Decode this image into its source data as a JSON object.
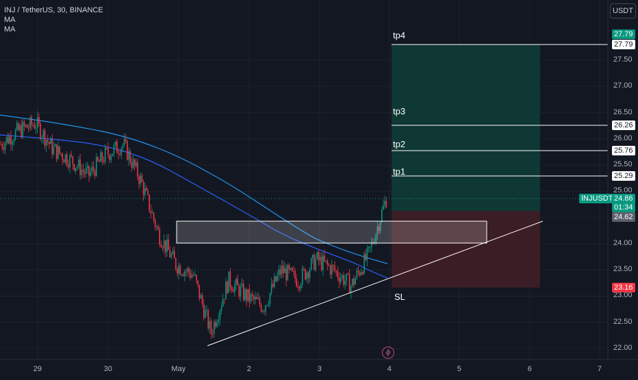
{
  "legend": {
    "symbol": "INJ / TetherUS, 30, BINANCE",
    "indicators": [
      "MA",
      "MA"
    ]
  },
  "currency_button": "USDT",
  "price_axis": {
    "ticks": [
      "27.50",
      "27.00",
      "26.50",
      "26.00",
      "25.50",
      "25.00",
      "24.50",
      "24.00",
      "23.50",
      "23.00",
      "22.50",
      "22.00"
    ],
    "tick_values": [
      27.5,
      27.0,
      26.5,
      26.0,
      25.5,
      25.0,
      24.5,
      24.0,
      23.5,
      23.0,
      22.5,
      22.0
    ],
    "tags": {
      "tp4_top": "27.79",
      "tp4": "27.79",
      "tp3": "26.26",
      "tp2": "25.76",
      "tp1": "25.29",
      "symbol": "INJUSDT",
      "last_price": "24.86",
      "countdown": "01:34",
      "entry": "24.62",
      "stop": "23.16"
    }
  },
  "time_axis": {
    "labels": [
      "29",
      "30",
      "May",
      "2",
      "3",
      "4",
      "5",
      "6",
      "7"
    ]
  },
  "annotations": {
    "tp4": "tp4",
    "tp3": "tp3",
    "tp2": "tp2",
    "tp1": "tp1",
    "sl": "SL"
  },
  "levels": {
    "tp4": 27.79,
    "tp3": 26.26,
    "tp2": 25.76,
    "tp1": 25.29,
    "last": 24.86,
    "entry": 24.62,
    "stop": 23.16,
    "zone_top": 24.43,
    "zone_bottom": 24.01
  },
  "colors": {
    "background": "#131722",
    "up": "#089981",
    "down": "#f23645",
    "ma_fast": "#2962ff",
    "ma_slow": "#2196f3",
    "profit_zone": "#0f3a36",
    "loss_zone": "#3d1d26"
  },
  "chart_data": {
    "type": "candlestick",
    "symbol": "INJ / TetherUS",
    "interval": "30",
    "exchange": "BINANCE",
    "y_range": [
      22.0,
      27.9
    ],
    "close_path": [
      {
        "t": "Apr 28 12:00",
        "close": 25.9
      },
      {
        "t": "Apr 28 18:00",
        "close": 26.15
      },
      {
        "t": "Apr 29 00:00",
        "close": 26.3
      },
      {
        "t": "Apr 29 06:00",
        "close": 25.8
      },
      {
        "t": "Apr 29 12:00",
        "close": 25.6
      },
      {
        "t": "Apr 29 18:00",
        "close": 25.3
      },
      {
        "t": "Apr 30 00:00",
        "close": 25.7
      },
      {
        "t": "Apr 30 06:00",
        "close": 25.9
      },
      {
        "t": "Apr 30 12:00",
        "close": 25.2
      },
      {
        "t": "Apr 30 18:00",
        "close": 24.2
      },
      {
        "t": "May 1 00:00",
        "close": 23.6
      },
      {
        "t": "May 1 06:00",
        "close": 23.4
      },
      {
        "t": "May 1 12:00",
        "close": 22.3
      },
      {
        "t": "May 1 18:00",
        "close": 23.3
      },
      {
        "t": "May 2 00:00",
        "close": 23.0
      },
      {
        "t": "May 2 06:00",
        "close": 22.8
      },
      {
        "t": "May 2 12:00",
        "close": 23.5
      },
      {
        "t": "May 2 18:00",
        "close": 23.3
      },
      {
        "t": "May 3 00:00",
        "close": 23.7
      },
      {
        "t": "May 3 06:00",
        "close": 23.5
      },
      {
        "t": "May 3 12:00",
        "close": 23.2
      },
      {
        "t": "May 3 18:00",
        "close": 23.8
      },
      {
        "t": "May 4 00:00",
        "close": 24.86
      }
    ]
  }
}
